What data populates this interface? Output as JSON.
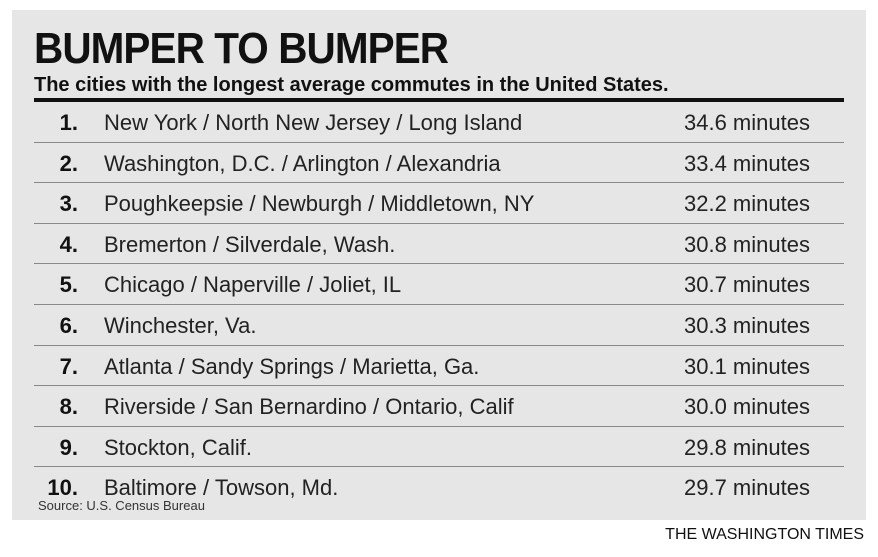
{
  "header": {
    "title": "BUMPER TO BUMPER",
    "subtitle": "The cities with the longest average commutes in the United States."
  },
  "table": {
    "rows": [
      [
        "1.",
        "New York / North New Jersey / Long Island",
        "34.6 minutes"
      ],
      [
        "2.",
        "Washington, D.C. / Arlington / Alexandria",
        "33.4 minutes"
      ],
      [
        "3.",
        "Poughkeepsie / Newburgh / Middletown, NY",
        "32.2 minutes"
      ],
      [
        "4.",
        "Bremerton / Silverdale, Wash.",
        "30.8 minutes"
      ],
      [
        "5.",
        "Chicago / Naperville / Joliet, IL",
        "30.7 minutes"
      ],
      [
        "6.",
        "Winchester, Va.",
        "30.3 minutes"
      ],
      [
        "7.",
        "Atlanta / Sandy Springs / Marietta, Ga.",
        "30.1 minutes"
      ],
      [
        "8.",
        "Riverside / San Bernardino / Ontario, Calif",
        "30.0 minutes"
      ],
      [
        "9.",
        "Stockton, Calif.",
        "29.8 minutes"
      ],
      [
        "10.",
        "Baltimore / Towson, Md.",
        "29.7 minutes"
      ]
    ]
  },
  "footer": {
    "source": "Source: U.S. Census Bureau",
    "credit": "THE WASHINGTON TIMES"
  }
}
